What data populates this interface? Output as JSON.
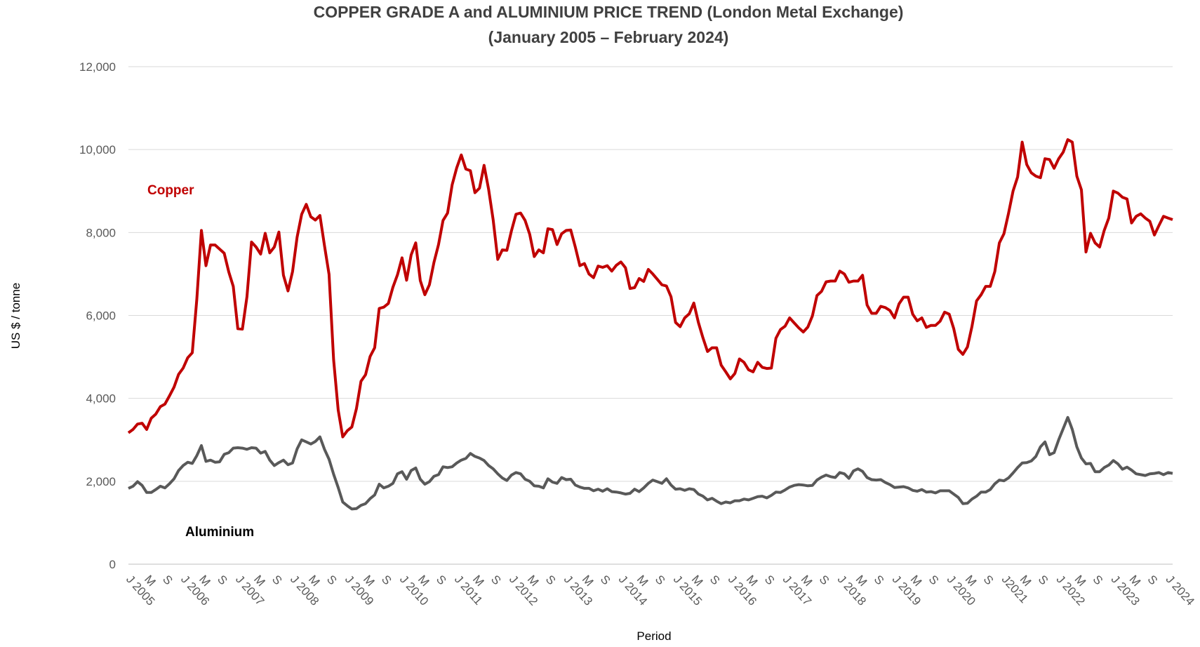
{
  "chart_data": {
    "type": "line",
    "title": "COPPER GRADE A and ALUMINIUM PRICE TREND (London Metal Exchange)",
    "subtitle": "(January 2005 – February 2024)",
    "y_label": "US $ / tonne",
    "x_label": "Period",
    "ylim": [
      0,
      12000
    ],
    "yticks": [
      0,
      {
        "value": 2000,
        "label": "2,000"
      },
      {
        "value": 4000,
        "label": "4,000"
      },
      {
        "value": 6000,
        "label": "6,000"
      },
      {
        "value": 8000,
        "label": "8,000"
      },
      {
        "value": 10000,
        "label": "10,000"
      },
      {
        "value": 12000,
        "label": "12,000"
      }
    ],
    "grid": true,
    "categories": [
      "J 2005",
      null,
      null,
      null,
      "M",
      null,
      null,
      null,
      "S",
      null,
      null,
      null,
      "J 2006",
      null,
      null,
      null,
      "M",
      null,
      null,
      null,
      "S",
      null,
      null,
      null,
      "J 2007",
      null,
      null,
      null,
      "M",
      null,
      null,
      null,
      "S",
      null,
      null,
      null,
      "J 2008",
      null,
      null,
      null,
      "M",
      null,
      null,
      null,
      "S",
      null,
      null,
      null,
      "J 2009",
      null,
      null,
      null,
      "M",
      null,
      null,
      null,
      "S",
      null,
      null,
      null,
      "J 2010",
      null,
      null,
      null,
      "M",
      null,
      null,
      null,
      "S",
      null,
      null,
      null,
      "J 2011",
      null,
      null,
      null,
      "M",
      null,
      null,
      null,
      "S",
      null,
      null,
      null,
      "J 2012",
      null,
      null,
      null,
      "M",
      null,
      null,
      null,
      "S",
      null,
      null,
      null,
      "J 2013",
      null,
      null,
      null,
      "M",
      null,
      null,
      null,
      "S",
      null,
      null,
      null,
      "J 2014",
      null,
      null,
      null,
      "M",
      null,
      null,
      null,
      "S",
      null,
      null,
      null,
      "J 2015",
      null,
      null,
      null,
      "M",
      null,
      null,
      null,
      "S",
      null,
      null,
      null,
      "J 2016",
      null,
      null,
      null,
      "M",
      null,
      null,
      null,
      "S",
      null,
      null,
      null,
      "J 2017",
      null,
      null,
      null,
      "M",
      null,
      null,
      null,
      "S",
      null,
      null,
      null,
      "J 2018",
      null,
      null,
      null,
      "M",
      null,
      null,
      null,
      "S",
      null,
      null,
      null,
      "J 2019",
      null,
      null,
      null,
      "M",
      null,
      null,
      null,
      "S",
      null,
      null,
      null,
      "J 2020",
      null,
      null,
      null,
      "M",
      null,
      null,
      null,
      "S",
      null,
      null,
      null,
      "J2021",
      null,
      null,
      null,
      "M",
      null,
      null,
      null,
      "S",
      null,
      null,
      null,
      "J 2022",
      null,
      null,
      null,
      "M",
      null,
      null,
      null,
      "S",
      null,
      null,
      null,
      "J 2023",
      null,
      null,
      null,
      "M",
      null,
      null,
      null,
      "S",
      null,
      null,
      null,
      "J 2024",
      null
    ],
    "series": [
      {
        "name": "Copper",
        "color": "#c00000",
        "values": [
          3170,
          3250,
          3380,
          3400,
          3250,
          3520,
          3620,
          3800,
          3860,
          4060,
          4270,
          4580,
          4730,
          4980,
          5100,
          6400,
          8050,
          7200,
          7700,
          7700,
          7600,
          7500,
          7050,
          6700,
          5680,
          5670,
          6450,
          7770,
          7650,
          7480,
          7980,
          7510,
          7650,
          8010,
          6970,
          6590,
          7060,
          7890,
          8440,
          8680,
          8380,
          8300,
          8410,
          7680,
          6990,
          4930,
          3720,
          3070,
          3220,
          3310,
          3750,
          4410,
          4570,
          5010,
          5220,
          6170,
          6200,
          6290,
          6680,
          6980,
          7390,
          6850,
          7460,
          7750,
          6840,
          6500,
          6740,
          7280,
          7710,
          8290,
          8470,
          9150,
          9560,
          9870,
          9530,
          9490,
          8960,
          9070,
          9620,
          9040,
          8300,
          7350,
          7580,
          7570,
          8040,
          8440,
          8470,
          8290,
          7960,
          7420,
          7580,
          7510,
          8090,
          8070,
          7710,
          7970,
          8050,
          8060,
          7650,
          7200,
          7250,
          7000,
          6910,
          7190,
          7160,
          7200,
          7070,
          7210,
          7290,
          7150,
          6650,
          6670,
          6890,
          6820,
          7110,
          7000,
          6870,
          6740,
          6710,
          6450,
          5830,
          5730,
          5940,
          6040,
          6300,
          5830,
          5460,
          5130,
          5220,
          5220,
          4800,
          4640,
          4470,
          4600,
          4950,
          4870,
          4690,
          4640,
          4870,
          4750,
          4720,
          4730,
          5450,
          5660,
          5740,
          5940,
          5820,
          5700,
          5600,
          5720,
          5990,
          6480,
          6580,
          6810,
          6830,
          6830,
          7070,
          7000,
          6800,
          6830,
          6830,
          6970,
          6250,
          6050,
          6050,
          6220,
          6190,
          6120,
          5940,
          6280,
          6440,
          6440,
          6030,
          5870,
          5940,
          5710,
          5760,
          5760,
          5860,
          6080,
          6030,
          5680,
          5180,
          5060,
          5240,
          5740,
          6350,
          6500,
          6700,
          6700,
          7060,
          7750,
          7970,
          8460,
          9000,
          9340,
          10180,
          9640,
          9440,
          9360,
          9320,
          9780,
          9760,
          9550,
          9780,
          9940,
          10240,
          10180,
          9360,
          9030,
          7530,
          7980,
          7750,
          7650,
          8050,
          8350,
          9000,
          8950,
          8850,
          8810,
          8230,
          8390,
          8450,
          8350,
          8270,
          7940,
          8170,
          8390,
          8350,
          8310
        ]
      },
      {
        "name": "Aluminium",
        "color": "#595959",
        "values": [
          1830,
          1880,
          1990,
          1900,
          1730,
          1730,
          1800,
          1880,
          1840,
          1940,
          2060,
          2260,
          2380,
          2460,
          2430,
          2620,
          2860,
          2480,
          2510,
          2460,
          2470,
          2650,
          2690,
          2800,
          2810,
          2800,
          2770,
          2810,
          2800,
          2680,
          2720,
          2510,
          2380,
          2450,
          2510,
          2400,
          2440,
          2780,
          3000,
          2950,
          2900,
          2960,
          3070,
          2770,
          2530,
          2170,
          1850,
          1500,
          1410,
          1330,
          1340,
          1420,
          1460,
          1580,
          1670,
          1930,
          1840,
          1880,
          1950,
          2180,
          2230,
          2050,
          2260,
          2320,
          2050,
          1930,
          1990,
          2120,
          2160,
          2350,
          2330,
          2350,
          2440,
          2510,
          2550,
          2670,
          2600,
          2560,
          2500,
          2380,
          2300,
          2180,
          2080,
          2020,
          2150,
          2210,
          2180,
          2050,
          2000,
          1890,
          1880,
          1840,
          2060,
          1980,
          1950,
          2090,
          2040,
          2050,
          1910,
          1860,
          1830,
          1830,
          1770,
          1810,
          1760,
          1820,
          1750,
          1740,
          1720,
          1690,
          1710,
          1810,
          1750,
          1840,
          1950,
          2030,
          1990,
          1950,
          2060,
          1910,
          1810,
          1820,
          1780,
          1820,
          1800,
          1690,
          1640,
          1550,
          1590,
          1520,
          1460,
          1500,
          1480,
          1530,
          1530,
          1570,
          1550,
          1590,
          1630,
          1640,
          1600,
          1660,
          1740,
          1730,
          1790,
          1860,
          1900,
          1920,
          1910,
          1890,
          1900,
          2030,
          2100,
          2150,
          2110,
          2090,
          2210,
          2180,
          2070,
          2250,
          2300,
          2240,
          2090,
          2040,
          2030,
          2040,
          1970,
          1920,
          1850,
          1860,
          1870,
          1840,
          1780,
          1760,
          1800,
          1740,
          1750,
          1720,
          1770,
          1770,
          1770,
          1690,
          1610,
          1460,
          1470,
          1570,
          1640,
          1740,
          1740,
          1800,
          1940,
          2030,
          2010,
          2080,
          2200,
          2330,
          2440,
          2450,
          2490,
          2600,
          2830,
          2950,
          2640,
          2690,
          3000,
          3270,
          3540,
          3250,
          2830,
          2560,
          2420,
          2430,
          2230,
          2230,
          2330,
          2390,
          2500,
          2420,
          2290,
          2340,
          2270,
          2180,
          2160,
          2140,
          2180,
          2190,
          2210,
          2160,
          2210,
          2190
        ]
      }
    ]
  }
}
